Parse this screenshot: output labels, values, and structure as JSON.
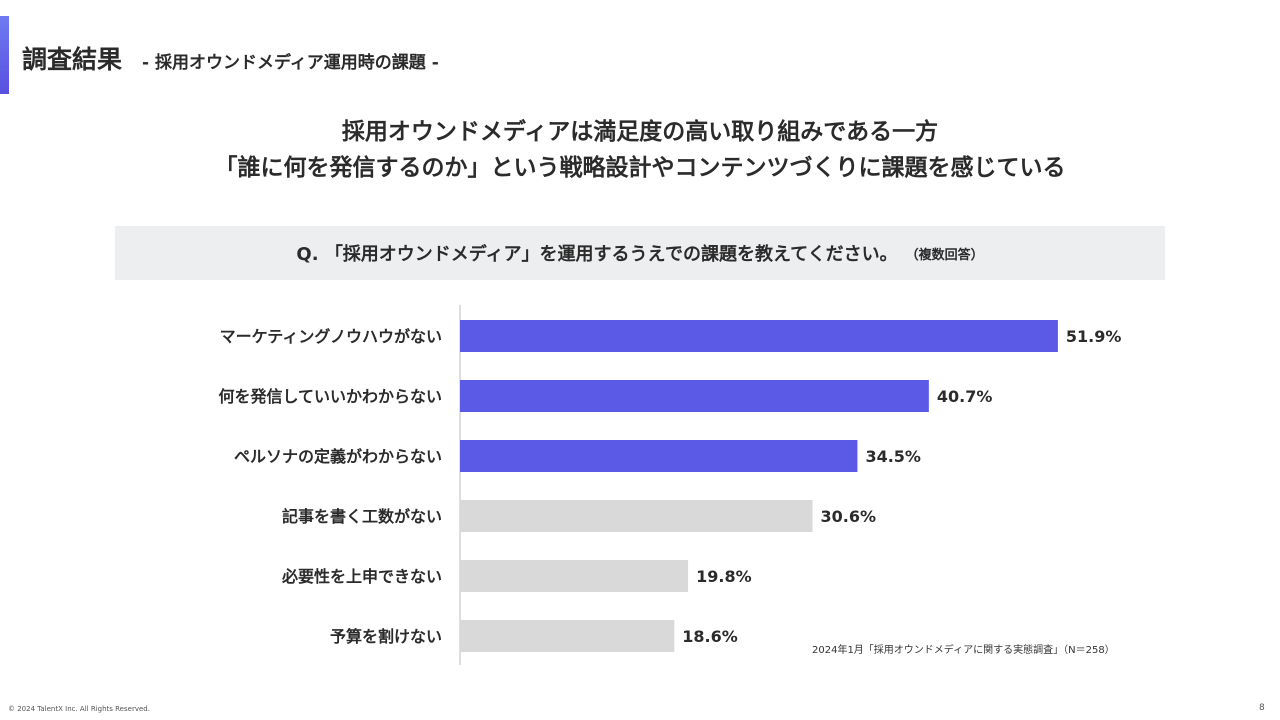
{
  "header": {
    "title": "調査結果",
    "subtitle": "- 採用オウンドメディア運用時の課題 -"
  },
  "headline": {
    "line1": "採用オウンドメディアは満足度の高い取り組みである一方",
    "line2": "「誰に何を発信するのか」という戦略設計やコンテンツづくりに課題を感じている"
  },
  "question": {
    "text": "Q. 「採用オウンドメディア」を運用するうえでの課題を教えてください。",
    "note": "（複数回答）"
  },
  "colors": {
    "highlight": "#5a5ae6",
    "muted": "#d9d9d9",
    "axis": "#bdbdbd"
  },
  "chart_data": {
    "type": "bar",
    "orientation": "horizontal",
    "categories": [
      "マーケティングノウハウがない",
      "何を発信していいかわからない",
      "ペルソナの定義がわからない",
      "記事を書く工数がない",
      "必要性を上申できない",
      "予算を割けない"
    ],
    "values": [
      51.9,
      40.7,
      34.5,
      30.6,
      19.8,
      18.6
    ],
    "value_labels": [
      "51.9%",
      "40.7%",
      "34.5%",
      "30.6%",
      "19.8%",
      "18.6%"
    ],
    "highlighted": [
      true,
      true,
      true,
      false,
      false,
      false
    ],
    "unit": "%",
    "xlim": [
      0,
      60
    ]
  },
  "source": "2024年1月「採用オウンドメディアに関する実態調査」（N＝258）",
  "footer": {
    "copyright": "© 2024  TalentX Inc. All Rights Reserved.",
    "page": "8"
  }
}
